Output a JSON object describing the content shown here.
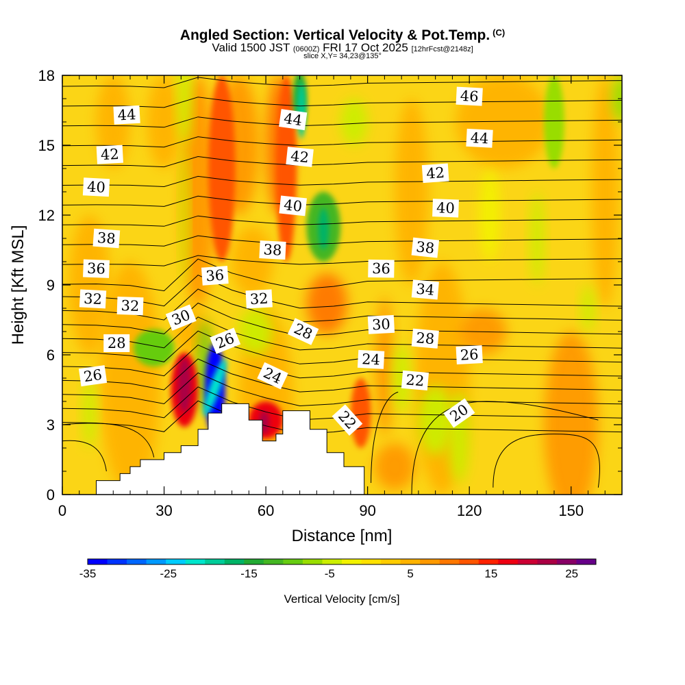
{
  "title": {
    "main": "Angled Section: Vertical Velocity & Pot.Temp.",
    "mark": "(C)",
    "valid_prefix": "Valid 1500 JST",
    "valid_utc": "(0600Z)",
    "valid_date": "FRI 17 Oct 2025",
    "valid_fcst": "[12hrFcst@2148z]",
    "slice": "slice X,Y= 34,23@135°"
  },
  "chart_data": {
    "type": "heatmap",
    "xlabel": "Distance [nm]",
    "ylabel": "Height [Kft MSL]",
    "xlim": [
      0,
      165
    ],
    "ylim": [
      0,
      18
    ],
    "xticks": [
      0,
      30,
      60,
      90,
      120,
      150
    ],
    "yticks": [
      0,
      3,
      6,
      9,
      12,
      15,
      18
    ],
    "fill_variable": "Vertical Velocity [cm/s]",
    "contour_variable": "Potential Temperature [C]",
    "terrain_profile": [
      [
        10,
        0.6
      ],
      [
        17,
        0.9
      ],
      [
        20,
        1.2
      ],
      [
        23,
        1.5
      ],
      [
        30,
        1.8
      ],
      [
        35,
        2.1
      ],
      [
        40,
        2.8
      ],
      [
        43,
        3.5
      ],
      [
        47,
        3.9
      ],
      [
        52,
        3.9
      ],
      [
        55,
        3.2
      ],
      [
        59,
        2.3
      ],
      [
        63,
        2.6
      ],
      [
        65,
        3.6
      ],
      [
        70,
        3.6
      ],
      [
        73,
        2.8
      ],
      [
        78,
        1.8
      ],
      [
        83,
        1.2
      ],
      [
        89,
        0.5
      ]
    ],
    "velocity_features": [
      {
        "x": 45,
        "y": 4.5,
        "value": -35
      },
      {
        "x": 36,
        "y": 4.5,
        "value": 18
      },
      {
        "x": 60,
        "y": 3.2,
        "value": 18
      },
      {
        "x": 47,
        "y": 14,
        "value": 12
      },
      {
        "x": 66,
        "y": 14,
        "value": 13
      },
      {
        "x": 70,
        "y": 17,
        "value": -15
      },
      {
        "x": 77,
        "y": 11.5,
        "value": -13
      },
      {
        "x": 27,
        "y": 6.3,
        "value": -10
      },
      {
        "x": 88,
        "y": 3.5,
        "value": 12
      },
      {
        "x": 145,
        "y": 16,
        "value": -8
      }
    ],
    "theta_labels": [
      {
        "text": "44",
        "x": 19,
        "y": 16.3
      },
      {
        "text": "44",
        "x": 68,
        "y": 16.1
      },
      {
        "text": "46",
        "x": 120,
        "y": 17.1
      },
      {
        "text": "42",
        "x": 14,
        "y": 14.6
      },
      {
        "text": "44",
        "x": 123,
        "y": 15.3
      },
      {
        "text": "42",
        "x": 70,
        "y": 14.5
      },
      {
        "text": "42",
        "x": 110,
        "y": 13.8
      },
      {
        "text": "40",
        "x": 10,
        "y": 13.2
      },
      {
        "text": "40",
        "x": 68,
        "y": 12.4
      },
      {
        "text": "40",
        "x": 113,
        "y": 12.3
      },
      {
        "text": "38",
        "x": 13,
        "y": 11
      },
      {
        "text": "38",
        "x": 62,
        "y": 10.5
      },
      {
        "text": "38",
        "x": 107,
        "y": 10.6
      },
      {
        "text": "36",
        "x": 10,
        "y": 9.7
      },
      {
        "text": "36",
        "x": 45,
        "y": 9.4
      },
      {
        "text": "36",
        "x": 94,
        "y": 9.7
      },
      {
        "text": "34",
        "x": 107,
        "y": 8.8
      },
      {
        "text": "32",
        "x": 9,
        "y": 8.4
      },
      {
        "text": "32",
        "x": 20,
        "y": 8.1
      },
      {
        "text": "32",
        "x": 58,
        "y": 8.4
      },
      {
        "text": "30",
        "x": 35,
        "y": 7.6
      },
      {
        "text": "30",
        "x": 94,
        "y": 7.3
      },
      {
        "text": "28",
        "x": 16,
        "y": 6.5
      },
      {
        "text": "28",
        "x": 71,
        "y": 7
      },
      {
        "text": "28",
        "x": 107,
        "y": 6.7
      },
      {
        "text": "26",
        "x": 48,
        "y": 6.6
      },
      {
        "text": "26",
        "x": 9,
        "y": 5.1
      },
      {
        "text": "26",
        "x": 120,
        "y": 6
      },
      {
        "text": "24",
        "x": 62,
        "y": 5.1
      },
      {
        "text": "24",
        "x": 91,
        "y": 5.8
      },
      {
        "text": "22",
        "x": 104,
        "y": 4.9
      },
      {
        "text": "22",
        "x": 84,
        "y": 3.2
      },
      {
        "text": "20",
        "x": 117,
        "y": 3.5
      }
    ],
    "colorbar": {
      "label": "Vertical Velocity [cm/s]",
      "range": [
        -35,
        28
      ],
      "tick_values": [
        -35,
        -25,
        -15,
        -5,
        5,
        15,
        25
      ],
      "tick_labels": [
        "-35",
        "-25",
        "-15",
        "-5",
        "5",
        "15",
        "25"
      ],
      "colors": [
        "#0000ff",
        "#0033ff",
        "#0066ff",
        "#0099ff",
        "#00ccff",
        "#00e5cc",
        "#00cc99",
        "#00b366",
        "#22aa33",
        "#44b622",
        "#66cc11",
        "#99dd00",
        "#ccee00",
        "#f2f200",
        "#ffe100",
        "#ffcc00",
        "#ffb300",
        "#ff9900",
        "#ff7700",
        "#ff5500",
        "#ff2200",
        "#ee0011",
        "#cc0033",
        "#aa0044",
        "#880066",
        "#660088"
      ]
    }
  }
}
